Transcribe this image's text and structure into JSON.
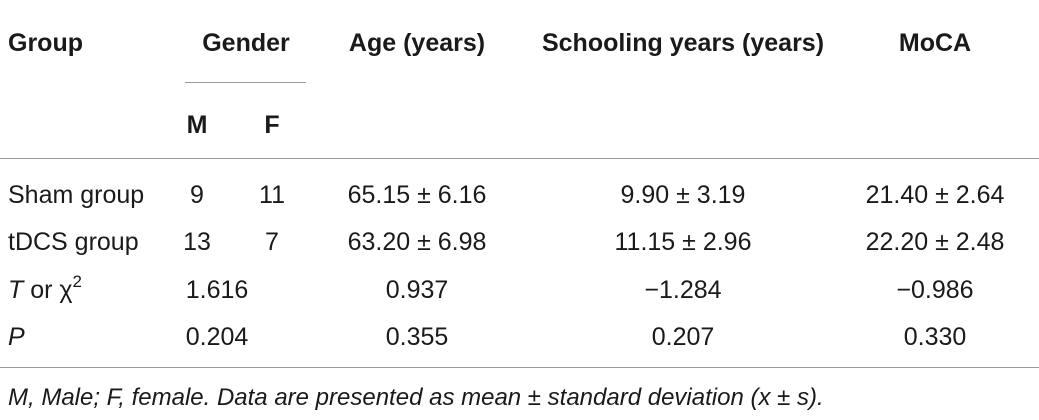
{
  "header": {
    "group": "Group",
    "gender": "Gender",
    "age": "Age (years)",
    "schooling": "Schooling years (years)",
    "moca": "MoCA",
    "male": "M",
    "female": "F"
  },
  "rows": [
    {
      "label": "Sham group",
      "m": "9",
      "f": "11",
      "age": "65.15 ± 6.16",
      "schooling": "9.90 ± 3.19",
      "moca": "21.40 ± 2.64"
    },
    {
      "label": "tDCS group",
      "m": "13",
      "f": "7",
      "age": "63.20 ± 6.98",
      "schooling": "11.15 ± 2.96",
      "moca": "22.20 ± 2.48"
    }
  ],
  "stat_rows": [
    {
      "label_italic": "T",
      "label_rest": " or χ",
      "label_sup": "2",
      "gender": "1.616",
      "age": "0.937",
      "schooling": "−1.284",
      "moca": "−0.986"
    },
    {
      "label_italic": "P",
      "gender": "0.204",
      "age": "0.355",
      "schooling": "0.207",
      "moca": "0.330"
    }
  ],
  "footnote": "M, Male; F, female. Data are presented as mean ± standard deviation (x ± s)."
}
